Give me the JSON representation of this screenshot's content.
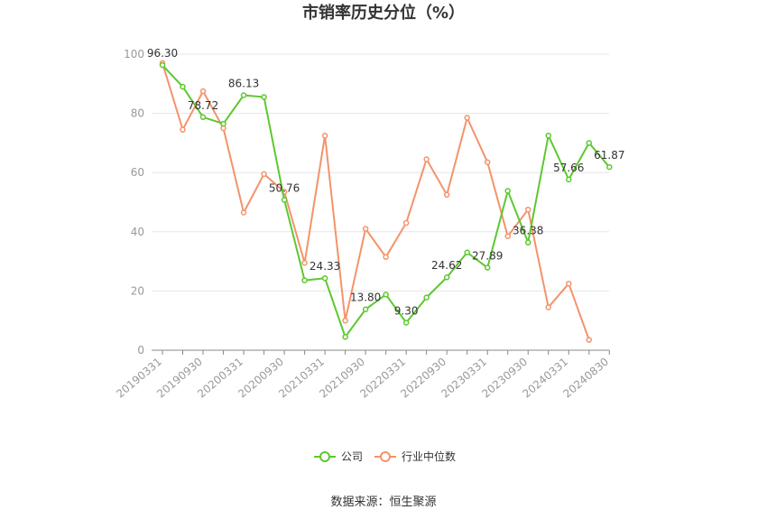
{
  "chart_data": {
    "type": "line",
    "title": "市销率历史分位（%）",
    "xlabel": "",
    "ylabel": "",
    "ylim": [
      0,
      100
    ],
    "yticks": [
      0,
      20,
      40,
      60,
      80,
      100
    ],
    "grid": true,
    "legend_position": "bottom",
    "categories": [
      "20190331",
      "20190630",
      "20190930",
      "20191231",
      "20200331",
      "20200630",
      "20200930",
      "20201231",
      "20210331",
      "20210630",
      "20210930",
      "20211231",
      "20220331",
      "20220630",
      "20220930",
      "20221231",
      "20230331",
      "20230630",
      "20230930",
      "20231231",
      "20240331",
      "20240630",
      "20240830"
    ],
    "x_tick_labels": [
      "20190331",
      "20190930",
      "20200331",
      "20200930",
      "20210331",
      "20210930",
      "20220331",
      "20220930",
      "20230331",
      "20230930",
      "20240331",
      "20240830"
    ],
    "series": [
      {
        "name": "公司",
        "color": "#5cc92e",
        "values": [
          96.3,
          89.0,
          78.72,
          76.5,
          86.13,
          85.5,
          50.76,
          23.6,
          24.33,
          4.5,
          13.8,
          18.8,
          9.3,
          17.8,
          24.62,
          33.0,
          27.89,
          53.8,
          36.38,
          72.5,
          57.66,
          70.0,
          61.87
        ],
        "data_labels": [
          [
            0,
            "96.30"
          ],
          [
            2,
            "78.72"
          ],
          [
            4,
            "86.13"
          ],
          [
            6,
            "50.76"
          ],
          [
            8,
            "24.33"
          ],
          [
            10,
            "13.80"
          ],
          [
            12,
            "9.30"
          ],
          [
            14,
            "24.62"
          ],
          [
            16,
            "27.89"
          ],
          [
            18,
            "36.38"
          ],
          [
            20,
            "57.66"
          ],
          [
            22,
            "61.87"
          ]
        ]
      },
      {
        "name": "行业中位数",
        "color": "#f4936b",
        "values": [
          97.0,
          74.5,
          87.5,
          75.0,
          46.5,
          59.5,
          53.5,
          29.5,
          72.5,
          10.0,
          41.0,
          31.5,
          43.0,
          64.5,
          52.5,
          78.5,
          63.5,
          38.5,
          47.5,
          14.5,
          22.5,
          3.5,
          null
        ]
      }
    ]
  },
  "footer": {
    "source": "数据来源：恒生聚源"
  }
}
